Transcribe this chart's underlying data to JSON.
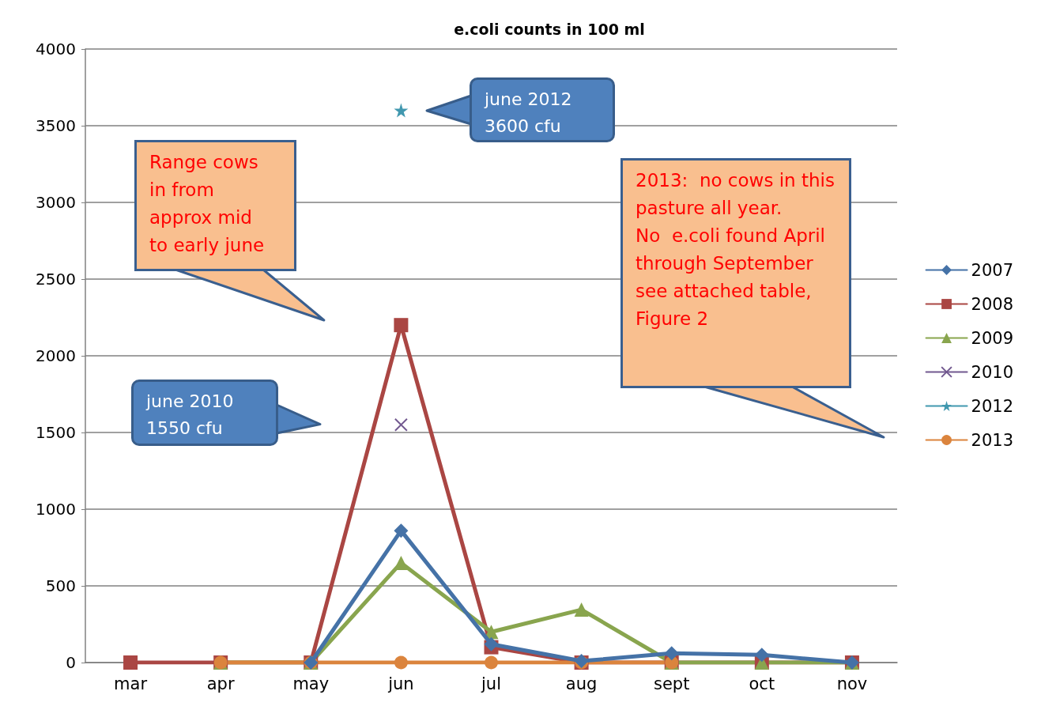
{
  "chart_data": {
    "type": "line",
    "title": "e.coli counts in 100 ml",
    "categories": [
      "mar",
      "apr",
      "may",
      "jun",
      "jul",
      "aug",
      "sept",
      "oct",
      "nov"
    ],
    "series": [
      {
        "name": "2007",
        "color": "#4572a7",
        "marker": "diamond",
        "values": [
          null,
          null,
          0,
          860,
          120,
          10,
          60,
          50,
          0
        ]
      },
      {
        "name": "2008",
        "color": "#aa4643",
        "marker": "square",
        "values": [
          0,
          0,
          0,
          2200,
          100,
          0,
          0,
          0,
          0
        ]
      },
      {
        "name": "2009",
        "color": "#89a54e",
        "marker": "triangle",
        "values": [
          null,
          0,
          0,
          650,
          200,
          345,
          0,
          0,
          0
        ]
      },
      {
        "name": "2010",
        "color": "#71588f",
        "marker": "cross",
        "values": [
          null,
          null,
          null,
          1550,
          null,
          null,
          null,
          null,
          null
        ]
      },
      {
        "name": "2012",
        "color": "#4198af",
        "marker": "star",
        "values": [
          null,
          null,
          null,
          3600,
          null,
          null,
          null,
          null,
          null
        ]
      },
      {
        "name": "2013",
        "color": "#db843d",
        "marker": "circle",
        "values": [
          null,
          0,
          0,
          0,
          0,
          0,
          0,
          null,
          null
        ]
      }
    ],
    "ylim": [
      0,
      4000
    ],
    "yticks": [
      0,
      500,
      1000,
      1500,
      2000,
      2500,
      3000,
      3500,
      4000
    ],
    "grid": "y",
    "legend": "right",
    "annotations": [
      "Range cows\nin from\napprox mid\nto early june",
      "june 2012\n3600 cfu",
      "june 2010\n1550 cfu",
      "2013:  no cows in this\npasture all year.\nNo  e.coli found April\nthrough September\nsee attached table,\nFigure 2"
    ]
  }
}
